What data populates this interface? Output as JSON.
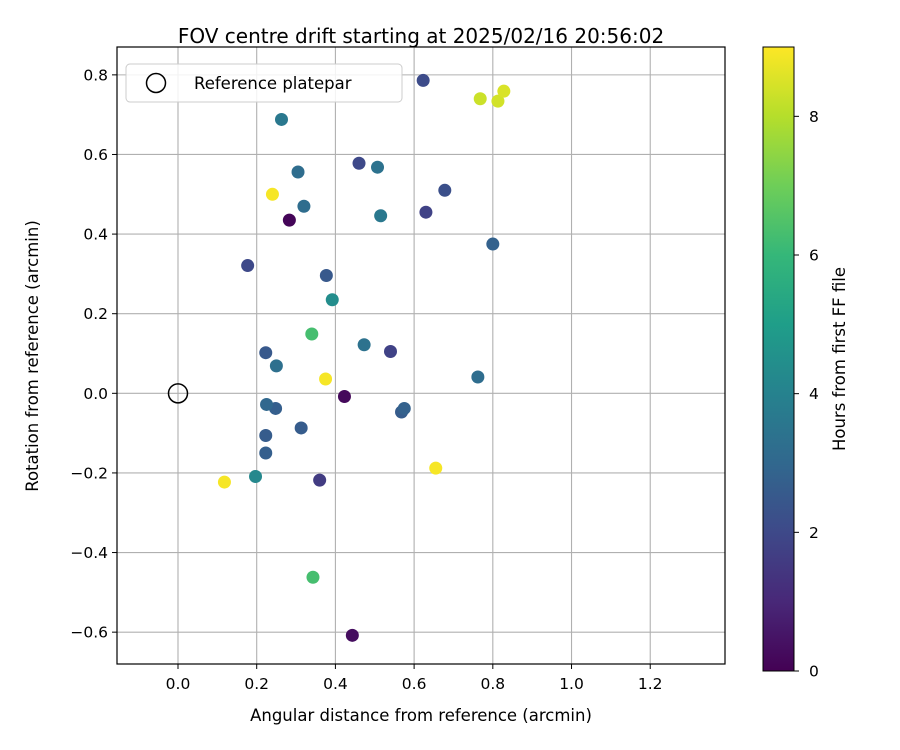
{
  "chart_data": {
    "type": "scatter",
    "title": "FOV centre drift starting at 2025/02/16 20:56:02",
    "xlabel": "Angular distance from reference (arcmin)",
    "ylabel": "Rotation from reference (arcmin)",
    "xlim": [
      -0.155,
      1.39
    ],
    "ylim": [
      -0.68,
      0.87
    ],
    "xticks": [
      0.0,
      0.2,
      0.4,
      0.6,
      0.8,
      1.0,
      1.2
    ],
    "xtick_labels": [
      "0.0",
      "0.2",
      "0.4",
      "0.6",
      "0.8",
      "1.0",
      "1.2"
    ],
    "yticks": [
      -0.6,
      -0.4,
      -0.2,
      0.0,
      0.2,
      0.4,
      0.6,
      0.8
    ],
    "ytick_labels": [
      "−0.6",
      "−0.4",
      "−0.2",
      "0.0",
      "0.2",
      "0.4",
      "0.6",
      "0.8"
    ],
    "grid": true,
    "legend": {
      "placement": "top-left",
      "entries": [
        "Reference platepar"
      ]
    },
    "reference_point": {
      "x": 0.0,
      "y": 0.0,
      "label": "Reference platepar"
    },
    "colorbar": {
      "label": "Hours from first FF file",
      "range": [
        0,
        9
      ],
      "ticks": [
        0,
        2,
        4,
        6,
        8
      ],
      "tick_labels": [
        "0",
        "2",
        "4",
        "6",
        "8"
      ],
      "colormap": "viridis",
      "stops": [
        "#440154",
        "#482878",
        "#3e4989",
        "#31688e",
        "#26828e",
        "#1f9e89",
        "#35b779",
        "#6ece58",
        "#b5de2b",
        "#fde725"
      ]
    },
    "points": [
      {
        "x": 0.283,
        "y": 0.435,
        "c": 0.1
      },
      {
        "x": 0.423,
        "y": -0.008,
        "c": 0.2
      },
      {
        "x": 0.443,
        "y": -0.608,
        "c": 0.3
      },
      {
        "x": 0.177,
        "y": 0.321,
        "c": 2.0
      },
      {
        "x": 0.36,
        "y": -0.218,
        "c": 1.6
      },
      {
        "x": 0.46,
        "y": 0.578,
        "c": 2.0
      },
      {
        "x": 0.54,
        "y": 0.105,
        "c": 1.8
      },
      {
        "x": 0.623,
        "y": 0.786,
        "c": 2.1
      },
      {
        "x": 0.63,
        "y": 0.455,
        "c": 1.8
      },
      {
        "x": 0.678,
        "y": 0.51,
        "c": 2.2
      },
      {
        "x": 0.377,
        "y": 0.296,
        "c": 2.5
      },
      {
        "x": 0.223,
        "y": 0.102,
        "c": 2.5
      },
      {
        "x": 0.223,
        "y": -0.106,
        "c": 2.6
      },
      {
        "x": 0.223,
        "y": -0.15,
        "c": 2.7
      },
      {
        "x": 0.248,
        "y": -0.038,
        "c": 2.7
      },
      {
        "x": 0.313,
        "y": -0.087,
        "c": 2.6
      },
      {
        "x": 0.568,
        "y": -0.047,
        "c": 2.6
      },
      {
        "x": 0.575,
        "y": -0.038,
        "c": 2.8
      },
      {
        "x": 0.8,
        "y": 0.375,
        "c": 2.8
      },
      {
        "x": 0.225,
        "y": -0.028,
        "c": 3.0
      },
      {
        "x": 0.762,
        "y": 0.041,
        "c": 3.2
      },
      {
        "x": 0.305,
        "y": 0.556,
        "c": 3.2
      },
      {
        "x": 0.32,
        "y": 0.47,
        "c": 3.2
      },
      {
        "x": 0.25,
        "y": 0.069,
        "c": 3.3
      },
      {
        "x": 0.473,
        "y": 0.122,
        "c": 3.4
      },
      {
        "x": 0.507,
        "y": 0.568,
        "c": 3.4
      },
      {
        "x": 0.263,
        "y": 0.688,
        "c": 3.6
      },
      {
        "x": 0.515,
        "y": 0.446,
        "c": 3.6
      },
      {
        "x": 0.197,
        "y": -0.209,
        "c": 4.2
      },
      {
        "x": 0.392,
        "y": 0.235,
        "c": 4.4
      },
      {
        "x": 0.34,
        "y": 0.149,
        "c": 6.3
      },
      {
        "x": 0.343,
        "y": -0.462,
        "c": 6.3
      },
      {
        "x": 0.768,
        "y": 0.74,
        "c": 8.3
      },
      {
        "x": 0.813,
        "y": 0.734,
        "c": 8.4
      },
      {
        "x": 0.828,
        "y": 0.759,
        "c": 8.5
      },
      {
        "x": 0.24,
        "y": 0.5,
        "c": 8.9
      },
      {
        "x": 0.375,
        "y": 0.036,
        "c": 8.9
      },
      {
        "x": 0.655,
        "y": -0.188,
        "c": 8.9
      },
      {
        "x": 0.118,
        "y": -0.223,
        "c": 8.9
      }
    ]
  }
}
